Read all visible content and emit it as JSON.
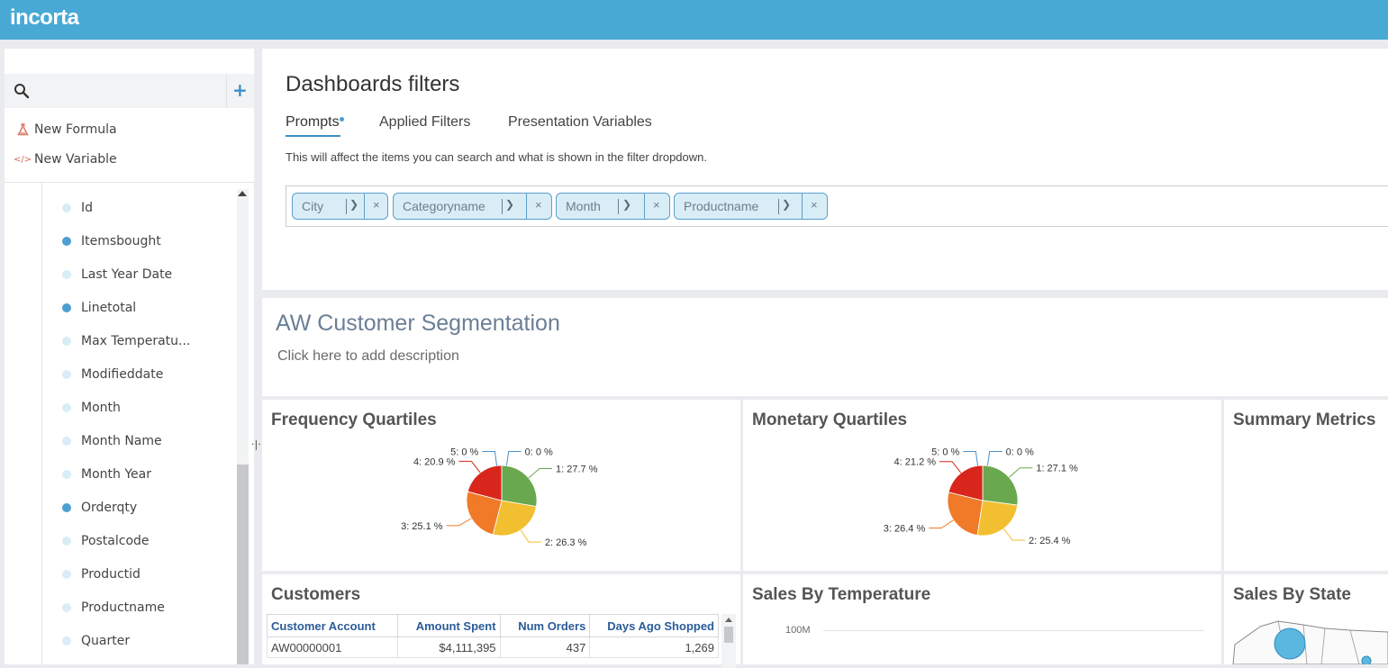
{
  "brand": {
    "logo": "incorta"
  },
  "sidebar": {
    "search_placeholder": "",
    "new_formula": "New Formula",
    "new_variable": "New Variable",
    "fields": [
      {
        "label": "Id",
        "filled": false
      },
      {
        "label": "Itemsbought",
        "filled": true
      },
      {
        "label": "Last Year Date",
        "filled": false
      },
      {
        "label": "Linetotal",
        "filled": true
      },
      {
        "label": "Max Temperatu...",
        "filled": false
      },
      {
        "label": "Modifieddate",
        "filled": false
      },
      {
        "label": "Month",
        "filled": false
      },
      {
        "label": "Month Name",
        "filled": false
      },
      {
        "label": "Month Year",
        "filled": false
      },
      {
        "label": "Orderqty",
        "filled": true
      },
      {
        "label": "Postalcode",
        "filled": false
      },
      {
        "label": "Productid",
        "filled": false
      },
      {
        "label": "Productname",
        "filled": false
      },
      {
        "label": "Quarter",
        "filled": false
      }
    ]
  },
  "filters": {
    "title": "Dashboards filters",
    "tabs": [
      "Prompts",
      "Applied Filters",
      "Presentation Variables"
    ],
    "active_tab": "Prompts",
    "description": "This will affect the items you can search and what is shown in the filter dropdown.",
    "prompts": [
      "City",
      "Categoryname",
      "Month",
      "Productname"
    ]
  },
  "dashboard": {
    "title": "AW Customer Segmentation",
    "description_placeholder": "Click here to add description"
  },
  "insights": {
    "frequency": {
      "title": "Frequency Quartiles",
      "slices": [
        {
          "label": "0: 0 %",
          "value": 0.0,
          "color": "#4a90c8"
        },
        {
          "label": "1: 27.7 %",
          "value": 27.7,
          "color": "#6aa84f"
        },
        {
          "label": "2: 26.3 %",
          "value": 26.3,
          "color": "#f2bf30"
        },
        {
          "label": "3: 25.1 %",
          "value": 25.1,
          "color": "#f07a28"
        },
        {
          "label": "4: 20.9 %",
          "value": 20.9,
          "color": "#d9261c"
        },
        {
          "label": "5: 0 %",
          "value": 0.0,
          "color": "#c0392b"
        }
      ]
    },
    "monetary": {
      "title": "Monetary Quartiles",
      "slices": [
        {
          "label": "0: 0 %",
          "value": 0.0,
          "color": "#4a90c8"
        },
        {
          "label": "1: 27.1 %",
          "value": 27.1,
          "color": "#6aa84f"
        },
        {
          "label": "2: 25.4 %",
          "value": 25.4,
          "color": "#f2bf30"
        },
        {
          "label": "3: 26.4 %",
          "value": 26.4,
          "color": "#f07a28"
        },
        {
          "label": "4: 21.2 %",
          "value": 21.2,
          "color": "#d9261c"
        },
        {
          "label": "5: 0 %",
          "value": 0.0,
          "color": "#c0392b"
        }
      ]
    },
    "summary": {
      "title": "Summary Metrics"
    },
    "customers": {
      "title": "Customers",
      "columns": [
        "Customer Account",
        "Amount Spent",
        "Num Orders",
        "Days Ago Shopped"
      ],
      "rows": [
        [
          "AW00000001",
          "$4,111,395",
          "437",
          "1,269"
        ]
      ]
    },
    "temperature": {
      "title": "Sales By Temperature",
      "tick": "100M"
    },
    "state": {
      "title": "Sales By State"
    }
  },
  "chart_data": [
    {
      "type": "pie",
      "title": "Frequency Quartiles",
      "categories": [
        "0",
        "1",
        "2",
        "3",
        "4",
        "5"
      ],
      "values": [
        0.0,
        27.7,
        26.3,
        25.1,
        20.9,
        0.0
      ]
    },
    {
      "type": "pie",
      "title": "Monetary Quartiles",
      "categories": [
        "0",
        "1",
        "2",
        "3",
        "4",
        "5"
      ],
      "values": [
        0.0,
        27.1,
        25.4,
        26.4,
        21.2,
        0.0
      ]
    }
  ]
}
